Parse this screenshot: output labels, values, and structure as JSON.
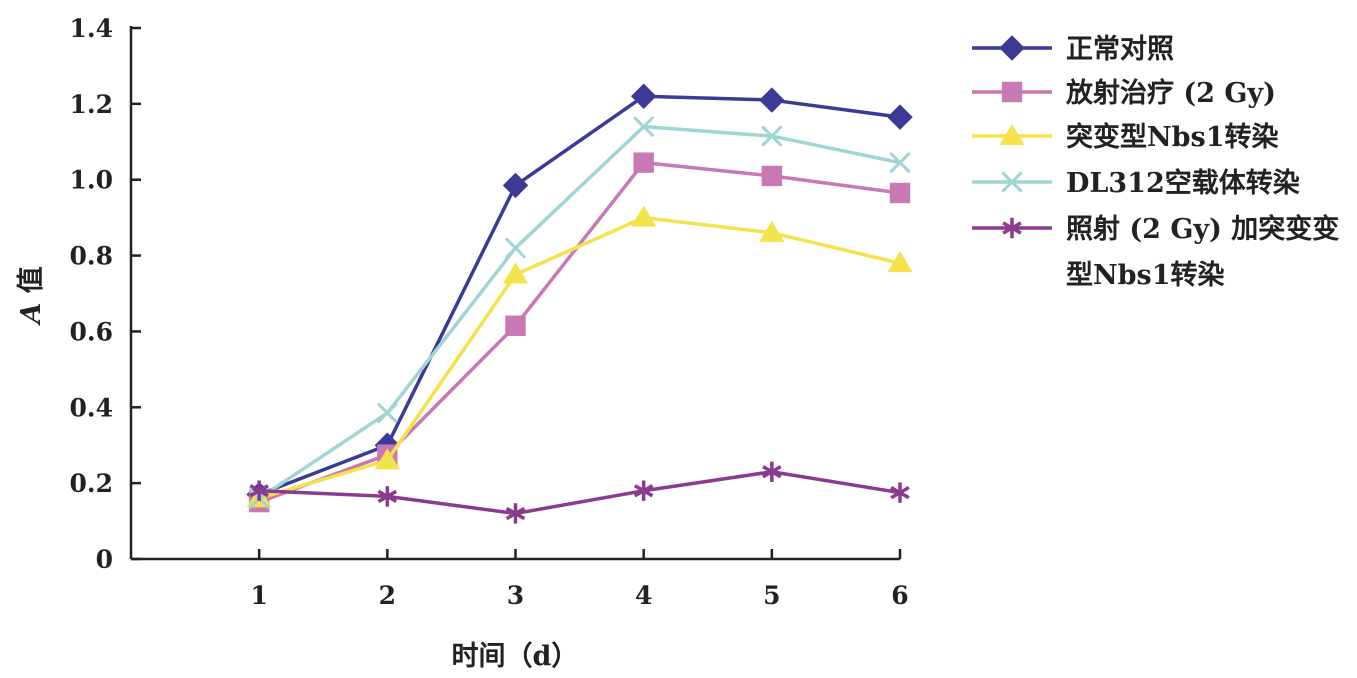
{
  "chart_data": {
    "type": "line",
    "title": "",
    "xlabel": "时间（d）",
    "ylabel_italic": "A",
    "ylabel_rest": " 值",
    "x": [
      1,
      2,
      3,
      4,
      5,
      6
    ],
    "x_tick_labels": [
      "1",
      "2",
      "3",
      "4",
      "5",
      "6"
    ],
    "xlim": [
      0,
      6
    ],
    "ylim": [
      0,
      1.4
    ],
    "y_ticks": [
      0,
      0.2,
      0.4,
      0.6,
      0.8,
      1.0,
      1.2,
      1.4
    ],
    "y_tick_labels": [
      "0",
      "0.2",
      "0.4",
      "0.6",
      "0.8",
      "1.0",
      "1.2",
      "1.4"
    ],
    "grid": false,
    "legend_position": "right",
    "series": [
      {
        "name": "正常对照",
        "marker": "diamond",
        "color": "#3b3a96",
        "values": [
          0.17,
          0.3,
          0.985,
          1.22,
          1.21,
          1.165
        ]
      },
      {
        "name": "放射治疗 (2 Gy)",
        "marker": "square",
        "color": "#c878b4",
        "values": [
          0.15,
          0.275,
          0.615,
          1.045,
          1.01,
          0.965
        ]
      },
      {
        "name": "突变型Nbs1转染",
        "marker": "triangle",
        "color": "#f5e24a",
        "values": [
          0.16,
          0.26,
          0.75,
          0.9,
          0.86,
          0.78
        ]
      },
      {
        "name": "DL312空载体转染",
        "marker": "x",
        "color": "#9fd6d4",
        "values": [
          0.16,
          0.385,
          0.82,
          1.14,
          1.115,
          1.045
        ]
      },
      {
        "name": "照射 (2 Gy) 加突变型Nbs1转染",
        "legend_lines": [
          "照射 (2 Gy) 加突变变",
          "型Nbs1转染"
        ],
        "marker": "asterisk",
        "color": "#8a3b8e",
        "values": [
          0.18,
          0.165,
          0.12,
          0.18,
          0.23,
          0.175
        ]
      }
    ]
  }
}
